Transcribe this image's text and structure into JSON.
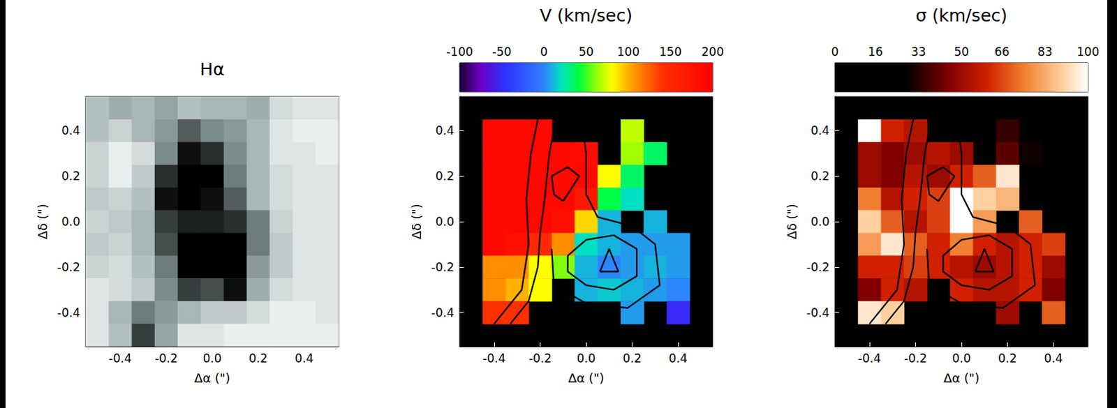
{
  "chart_data": [
    {
      "type": "heatmap",
      "title": "Hα",
      "xlabel": "Δα (\")",
      "ylabel": "Δδ (\")",
      "color": "gray_r",
      "x": [
        -0.5,
        -0.4,
        -0.3,
        -0.2,
        -0.1,
        0.0,
        0.1,
        0.2,
        0.3,
        0.4,
        0.5
      ],
      "y": [
        0.5,
        0.4,
        0.3,
        0.2,
        0.1,
        0.0,
        -0.1,
        -0.2,
        -0.3,
        -0.4,
        -0.5
      ],
      "z": [
        [
          30,
          40,
          35,
          45,
          30,
          35,
          35,
          40,
          15,
          10,
          10
        ],
        [
          30,
          20,
          35,
          50,
          70,
          55,
          50,
          35,
          10,
          5,
          5
        ],
        [
          20,
          5,
          15,
          55,
          95,
          85,
          55,
          35,
          10,
          10,
          5
        ],
        [
          20,
          5,
          25,
          85,
          100,
          100,
          60,
          35,
          15,
          10,
          10
        ],
        [
          25,
          20,
          30,
          95,
          100,
          95,
          70,
          35,
          15,
          10,
          10
        ],
        [
          20,
          25,
          35,
          80,
          90,
          90,
          85,
          60,
          20,
          10,
          10
        ],
        [
          25,
          20,
          35,
          75,
          100,
          100,
          100,
          60,
          25,
          10,
          10
        ],
        [
          20,
          15,
          30,
          60,
          100,
          100,
          100,
          50,
          25,
          10,
          10
        ],
        [
          10,
          15,
          25,
          55,
          80,
          75,
          95,
          40,
          15,
          10,
          10
        ],
        [
          10,
          35,
          60,
          50,
          35,
          25,
          25,
          15,
          5,
          5,
          10
        ],
        [
          10,
          30,
          80,
          45,
          10,
          10,
          5,
          5,
          5,
          5,
          5
        ]
      ],
      "zlim": [
        0,
        100
      ],
      "xlim": [
        -0.55,
        0.55
      ],
      "ylim": [
        -0.55,
        0.55
      ],
      "xticks": [
        -0.4,
        -0.2,
        {
          "value": 0,
          "label": "0.0"
        },
        0.2,
        0.4
      ],
      "yticks": [
        -0.4,
        -0.2,
        {
          "value": 0,
          "label": "0.0"
        },
        0.2,
        0.4
      ]
    },
    {
      "type": "heatmap",
      "title": "V (km/sec)",
      "xlabel": "Δα (\")",
      "ylabel": "Δδ (\")",
      "color": "rainbow",
      "x": [
        -0.5,
        -0.4,
        -0.3,
        -0.2,
        -0.1,
        0.0,
        0.1,
        0.2,
        0.3,
        0.4,
        0.5
      ],
      "y": [
        0.5,
        0.4,
        0.3,
        0.2,
        0.1,
        0.0,
        -0.1,
        -0.2,
        -0.3,
        -0.4,
        -0.5
      ],
      "z": [
        [
          null,
          null,
          null,
          null,
          null,
          null,
          null,
          null,
          null,
          null,
          null
        ],
        [
          null,
          190,
          190,
          190,
          null,
          null,
          null,
          70,
          null,
          null,
          null
        ],
        [
          null,
          190,
          190,
          190,
          190,
          185,
          null,
          65,
          35,
          null,
          null
        ],
        [
          null,
          190,
          190,
          190,
          190,
          190,
          80,
          35,
          null,
          null,
          null
        ],
        [
          null,
          190,
          190,
          190,
          190,
          170,
          40,
          20,
          null,
          null,
          null
        ],
        [
          null,
          190,
          190,
          190,
          180,
          90,
          10,
          null,
          10,
          null,
          null
        ],
        [
          null,
          190,
          180,
          150,
          110,
          20,
          10,
          5,
          5,
          5,
          null
        ],
        [
          null,
          110,
          110,
          80,
          60,
          10,
          0,
          5,
          10,
          5,
          null
        ],
        [
          null,
          110,
          100,
          80,
          null,
          10,
          15,
          10,
          5,
          0,
          null
        ],
        [
          null,
          140,
          140,
          null,
          null,
          null,
          null,
          5,
          null,
          -50,
          null
        ],
        [
          null,
          null,
          null,
          null,
          null,
          null,
          null,
          null,
          null,
          null,
          null
        ]
      ],
      "colorbar": {
        "range": [
          -100,
          200
        ],
        "ticks": [
          -100,
          -50,
          0,
          50,
          100,
          150,
          200
        ]
      },
      "contours": [
        [
          [
            -0.21,
            0.45
          ],
          [
            -0.24,
            0.3
          ],
          [
            -0.26,
            0.1
          ],
          [
            -0.25,
            -0.1
          ],
          [
            -0.28,
            -0.3
          ],
          [
            -0.4,
            -0.45
          ]
        ],
        [
          [
            -0.13,
            0.45
          ],
          [
            -0.16,
            0.3
          ],
          [
            -0.18,
            0.1
          ],
          [
            -0.2,
            -0.05
          ],
          [
            -0.21,
            -0.2
          ],
          [
            -0.25,
            -0.35
          ],
          [
            -0.33,
            -0.45
          ]
        ],
        [
          [
            -0.1,
            0.09
          ],
          [
            -0.03,
            0.2
          ],
          [
            -0.08,
            0.24
          ],
          [
            -0.15,
            0.2
          ],
          [
            -0.14,
            0.12
          ],
          [
            -0.1,
            0.09
          ]
        ],
        [
          [
            0.06,
            -0.22
          ],
          [
            0.1,
            -0.12
          ],
          [
            0.14,
            -0.22
          ],
          [
            0.06,
            -0.22
          ]
        ],
        [
          [
            -0.08,
            -0.15
          ],
          [
            0.0,
            -0.08
          ],
          [
            0.12,
            -0.06
          ],
          [
            0.22,
            -0.12
          ],
          [
            0.22,
            -0.24
          ],
          [
            0.12,
            -0.3
          ],
          [
            0.0,
            -0.28
          ],
          [
            -0.08,
            -0.22
          ],
          [
            -0.08,
            -0.15
          ]
        ],
        [
          [
            -0.02,
            0.45
          ],
          [
            0.0,
            0.3
          ],
          [
            0.0,
            0.12
          ],
          [
            0.05,
            0.02
          ],
          [
            0.2,
            -0.02
          ],
          [
            0.3,
            -0.1
          ],
          [
            0.32,
            -0.28
          ],
          [
            0.18,
            -0.38
          ],
          [
            0.0,
            -0.36
          ],
          [
            -0.14,
            -0.28
          ],
          [
            -0.15,
            -0.12
          ]
        ]
      ],
      "xlim": [
        -0.55,
        0.55
      ],
      "ylim": [
        -0.55,
        0.55
      ],
      "xticks": [
        -0.4,
        -0.2,
        {
          "value": 0,
          "label": "0.0"
        },
        0.2,
        0.4
      ],
      "yticks": [
        -0.4,
        -0.2,
        {
          "value": 0,
          "label": "0.0"
        },
        0.2,
        0.4
      ]
    },
    {
      "type": "heatmap",
      "title": "σ (km/sec)",
      "xlabel": "Δα (\")",
      "ylabel": "Δδ (\")",
      "color": "hot",
      "x": [
        -0.5,
        -0.4,
        -0.3,
        -0.2,
        -0.1,
        0.0,
        0.1,
        0.2,
        0.3,
        0.4,
        0.5
      ],
      "y": [
        0.5,
        0.4,
        0.3,
        0.2,
        0.1,
        0.0,
        -0.1,
        -0.2,
        -0.3,
        -0.4,
        -0.5
      ],
      "z": [
        [
          null,
          null,
          null,
          null,
          null,
          null,
          null,
          null,
          null,
          null,
          null
        ],
        [
          null,
          100,
          60,
          55,
          null,
          null,
          null,
          35,
          null,
          null,
          null
        ],
        [
          null,
          50,
          45,
          50,
          55,
          50,
          null,
          40,
          30,
          null,
          null
        ],
        [
          null,
          50,
          45,
          55,
          50,
          60,
          70,
          95,
          null,
          null,
          null
        ],
        [
          null,
          75,
          55,
          60,
          65,
          100,
          90,
          85,
          null,
          null,
          null
        ],
        [
          null,
          90,
          70,
          55,
          65,
          100,
          80,
          null,
          70,
          null,
          null
        ],
        [
          null,
          80,
          95,
          70,
          60,
          75,
          60,
          55,
          60,
          65,
          null
        ],
        [
          null,
          60,
          60,
          65,
          60,
          55,
          50,
          55,
          60,
          50,
          null
        ],
        [
          null,
          45,
          60,
          55,
          null,
          60,
          55,
          55,
          60,
          45,
          null
        ],
        [
          null,
          95,
          90,
          null,
          null,
          null,
          null,
          50,
          null,
          70,
          null
        ],
        [
          null,
          null,
          null,
          null,
          null,
          null,
          null,
          null,
          null,
          null,
          null
        ]
      ],
      "colorbar": {
        "range": [
          0,
          100
        ],
        "ticks": [
          0,
          16,
          33,
          50,
          66,
          83,
          100
        ]
      },
      "contours": [
        [
          [
            -0.21,
            0.45
          ],
          [
            -0.24,
            0.3
          ],
          [
            -0.26,
            0.1
          ],
          [
            -0.25,
            -0.1
          ],
          [
            -0.28,
            -0.3
          ],
          [
            -0.4,
            -0.45
          ]
        ],
        [
          [
            -0.13,
            0.45
          ],
          [
            -0.16,
            0.3
          ],
          [
            -0.18,
            0.1
          ],
          [
            -0.2,
            -0.05
          ],
          [
            -0.21,
            -0.2
          ],
          [
            -0.25,
            -0.35
          ],
          [
            -0.33,
            -0.45
          ]
        ],
        [
          [
            -0.1,
            0.09
          ],
          [
            -0.03,
            0.2
          ],
          [
            -0.08,
            0.24
          ],
          [
            -0.15,
            0.2
          ],
          [
            -0.14,
            0.12
          ],
          [
            -0.1,
            0.09
          ]
        ],
        [
          [
            0.06,
            -0.22
          ],
          [
            0.1,
            -0.12
          ],
          [
            0.14,
            -0.22
          ],
          [
            0.06,
            -0.22
          ]
        ],
        [
          [
            -0.08,
            -0.15
          ],
          [
            0.0,
            -0.08
          ],
          [
            0.12,
            -0.06
          ],
          [
            0.22,
            -0.12
          ],
          [
            0.22,
            -0.24
          ],
          [
            0.12,
            -0.3
          ],
          [
            0.0,
            -0.28
          ],
          [
            -0.08,
            -0.22
          ],
          [
            -0.08,
            -0.15
          ]
        ],
        [
          [
            -0.02,
            0.45
          ],
          [
            0.0,
            0.3
          ],
          [
            0.0,
            0.12
          ],
          [
            0.05,
            0.02
          ],
          [
            0.2,
            -0.02
          ],
          [
            0.3,
            -0.1
          ],
          [
            0.32,
            -0.28
          ],
          [
            0.18,
            -0.38
          ],
          [
            0.0,
            -0.36
          ],
          [
            -0.14,
            -0.28
          ],
          [
            -0.15,
            -0.12
          ]
        ]
      ],
      "xlim": [
        -0.55,
        0.55
      ],
      "ylim": [
        -0.55,
        0.55
      ],
      "xticks": [
        -0.4,
        -0.2,
        {
          "value": 0,
          "label": "0.0"
        },
        0.2,
        0.4
      ],
      "yticks": [
        -0.4,
        -0.2,
        {
          "value": 0,
          "label": "0.0"
        },
        0.2,
        0.4
      ]
    }
  ]
}
